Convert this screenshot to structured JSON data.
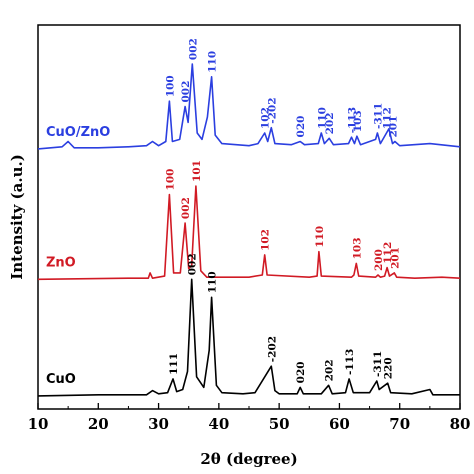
{
  "chart_data": {
    "type": "line",
    "xlabel": "2θ (degree)",
    "ylabel": "Intensity (a.u.)",
    "xlim": [
      10,
      80
    ],
    "xticks": [
      10,
      20,
      30,
      40,
      50,
      60,
      70,
      80
    ],
    "grid": false,
    "series": [
      {
        "name": "CuO/ZnO",
        "color": "#2b3fe0",
        "offset": 2.3,
        "points": [
          [
            10,
            0.05
          ],
          [
            14,
            0.07
          ],
          [
            15,
            0.12
          ],
          [
            16,
            0.06
          ],
          [
            20,
            0.06
          ],
          [
            25,
            0.07
          ],
          [
            28,
            0.08
          ],
          [
            29,
            0.12
          ],
          [
            30,
            0.08
          ],
          [
            31.2,
            0.12
          ],
          [
            31.8,
            0.5
          ],
          [
            32.3,
            0.12
          ],
          [
            33.5,
            0.14
          ],
          [
            34.4,
            0.45
          ],
          [
            34.9,
            0.3
          ],
          [
            35.6,
            0.85
          ],
          [
            36.4,
            0.2
          ],
          [
            37.2,
            0.14
          ],
          [
            38.1,
            0.35
          ],
          [
            38.8,
            0.73
          ],
          [
            39.4,
            0.18
          ],
          [
            40.5,
            0.1
          ],
          [
            45,
            0.08
          ],
          [
            46.5,
            0.1
          ],
          [
            47.6,
            0.2
          ],
          [
            48.1,
            0.12
          ],
          [
            48.7,
            0.25
          ],
          [
            49.3,
            0.1
          ],
          [
            52,
            0.09
          ],
          [
            53.5,
            0.12
          ],
          [
            54.2,
            0.09
          ],
          [
            56.5,
            0.1
          ],
          [
            57,
            0.2
          ],
          [
            57.5,
            0.1
          ],
          [
            58.3,
            0.15
          ],
          [
            59,
            0.09
          ],
          [
            61.5,
            0.1
          ],
          [
            62,
            0.16
          ],
          [
            62.5,
            0.1
          ],
          [
            62.9,
            0.17
          ],
          [
            63.5,
            0.09
          ],
          [
            66,
            0.14
          ],
          [
            66.3,
            0.2
          ],
          [
            66.8,
            0.1
          ],
          [
            67.8,
            0.2
          ],
          [
            68.2,
            0.24
          ],
          [
            68.8,
            0.1
          ],
          [
            69.2,
            0.12
          ],
          [
            70,
            0.08
          ],
          [
            75,
            0.1
          ],
          [
            80,
            0.07
          ]
        ],
        "peak_labels": [
          {
            "text": "100",
            "x": 31.8,
            "y": 0.5
          },
          {
            "text": "002",
            "x": 34.4,
            "y": 0.45
          },
          {
            "text": "002",
            "x": 35.6,
            "y": 0.85
          },
          {
            "text": "110",
            "x": 38.8,
            "y": 0.73
          },
          {
            "text": "102",
            "x": 47.6,
            "y": 0.2
          },
          {
            "text": "-202",
            "x": 48.7,
            "y": 0.25
          },
          {
            "text": "020",
            "x": 53.5,
            "y": 0.12
          },
          {
            "text": "110",
            "x": 57.0,
            "y": 0.2
          },
          {
            "text": "202",
            "x": 58.3,
            "y": 0.15
          },
          {
            "text": "-113",
            "x": 62.0,
            "y": 0.16
          },
          {
            "text": "103",
            "x": 62.9,
            "y": 0.17
          },
          {
            "text": "-311",
            "x": 66.3,
            "y": 0.2
          },
          {
            "text": "112",
            "x": 67.8,
            "y": 0.2
          },
          {
            "text": "201",
            "x": 68.8,
            "y": 0.12
          }
        ]
      },
      {
        "name": "ZnO",
        "color": "#d11a24",
        "offset": 1.1,
        "points": [
          [
            10,
            0.02
          ],
          [
            25,
            0.03
          ],
          [
            28.3,
            0.03
          ],
          [
            28.6,
            0.08
          ],
          [
            29,
            0.03
          ],
          [
            31,
            0.05
          ],
          [
            31.8,
            0.82
          ],
          [
            32.5,
            0.08
          ],
          [
            33.6,
            0.08
          ],
          [
            34.4,
            0.55
          ],
          [
            35,
            0.12
          ],
          [
            35.5,
            0.15
          ],
          [
            36.2,
            0.9
          ],
          [
            37,
            0.1
          ],
          [
            38,
            0.04
          ],
          [
            45,
            0.04
          ],
          [
            47.2,
            0.06
          ],
          [
            47.6,
            0.25
          ],
          [
            48,
            0.06
          ],
          [
            55,
            0.04
          ],
          [
            56.3,
            0.05
          ],
          [
            56.6,
            0.28
          ],
          [
            57,
            0.05
          ],
          [
            62,
            0.04
          ],
          [
            62.4,
            0.06
          ],
          [
            62.8,
            0.17
          ],
          [
            63.2,
            0.05
          ],
          [
            66,
            0.04
          ],
          [
            66.4,
            0.06
          ],
          [
            66.8,
            0.04
          ],
          [
            67.5,
            0.05
          ],
          [
            67.9,
            0.13
          ],
          [
            68.3,
            0.05
          ],
          [
            69.1,
            0.08
          ],
          [
            69.5,
            0.04
          ],
          [
            72.5,
            0.03
          ],
          [
            77,
            0.04
          ],
          [
            80,
            0.03
          ]
        ],
        "peak_labels": [
          {
            "text": "100",
            "x": 31.8,
            "y": 0.82
          },
          {
            "text": "002",
            "x": 34.4,
            "y": 0.55
          },
          {
            "text": "101",
            "x": 36.2,
            "y": 0.9
          },
          {
            "text": "102",
            "x": 47.6,
            "y": 0.25
          },
          {
            "text": "110",
            "x": 56.6,
            "y": 0.28
          },
          {
            "text": "103",
            "x": 62.8,
            "y": 0.17
          },
          {
            "text": "200",
            "x": 66.4,
            "y": 0.06
          },
          {
            "text": "112",
            "x": 67.9,
            "y": 0.13
          },
          {
            "text": "201",
            "x": 69.1,
            "y": 0.08
          }
        ]
      },
      {
        "name": "CuO",
        "color": "#000000",
        "offset": 0,
        "points": [
          [
            10,
            0.02
          ],
          [
            20,
            0.03
          ],
          [
            28,
            0.03
          ],
          [
            29,
            0.07
          ],
          [
            30,
            0.04
          ],
          [
            31.5,
            0.05
          ],
          [
            32.4,
            0.18
          ],
          [
            33,
            0.06
          ],
          [
            34,
            0.08
          ],
          [
            34.8,
            0.25
          ],
          [
            35.5,
            1.12
          ],
          [
            36.3,
            0.2
          ],
          [
            37.5,
            0.1
          ],
          [
            38.4,
            0.45
          ],
          [
            38.8,
            0.95
          ],
          [
            39.6,
            0.12
          ],
          [
            40.5,
            0.05
          ],
          [
            44,
            0.04
          ],
          [
            46,
            0.05
          ],
          [
            48.7,
            0.3
          ],
          [
            49.3,
            0.07
          ],
          [
            50,
            0.04
          ],
          [
            53,
            0.04
          ],
          [
            53.5,
            0.1
          ],
          [
            54,
            0.04
          ],
          [
            57,
            0.04
          ],
          [
            58.2,
            0.12
          ],
          [
            58.8,
            0.04
          ],
          [
            61,
            0.05
          ],
          [
            61.6,
            0.18
          ],
          [
            62.3,
            0.05
          ],
          [
            65,
            0.05
          ],
          [
            66.2,
            0.16
          ],
          [
            66.6,
            0.08
          ],
          [
            68,
            0.14
          ],
          [
            68.5,
            0.05
          ],
          [
            72,
            0.04
          ],
          [
            75,
            0.08
          ],
          [
            75.5,
            0.03
          ],
          [
            80,
            0.03
          ]
        ],
        "peak_labels": [
          {
            "text": "111",
            "x": 32.4,
            "y": 0.18
          },
          {
            "text": "002",
            "x": 35.5,
            "y": 1.12
          },
          {
            "text": "110",
            "x": 38.8,
            "y": 0.95
          },
          {
            "text": "-202",
            "x": 48.7,
            "y": 0.3
          },
          {
            "text": "020",
            "x": 53.5,
            "y": 0.1
          },
          {
            "text": "202",
            "x": 58.2,
            "y": 0.12
          },
          {
            "text": "-113",
            "x": 61.6,
            "y": 0.18
          },
          {
            "text": "-311",
            "x": 66.2,
            "y": 0.16
          },
          {
            "text": "220",
            "x": 68.0,
            "y": 0.14
          }
        ]
      }
    ]
  }
}
